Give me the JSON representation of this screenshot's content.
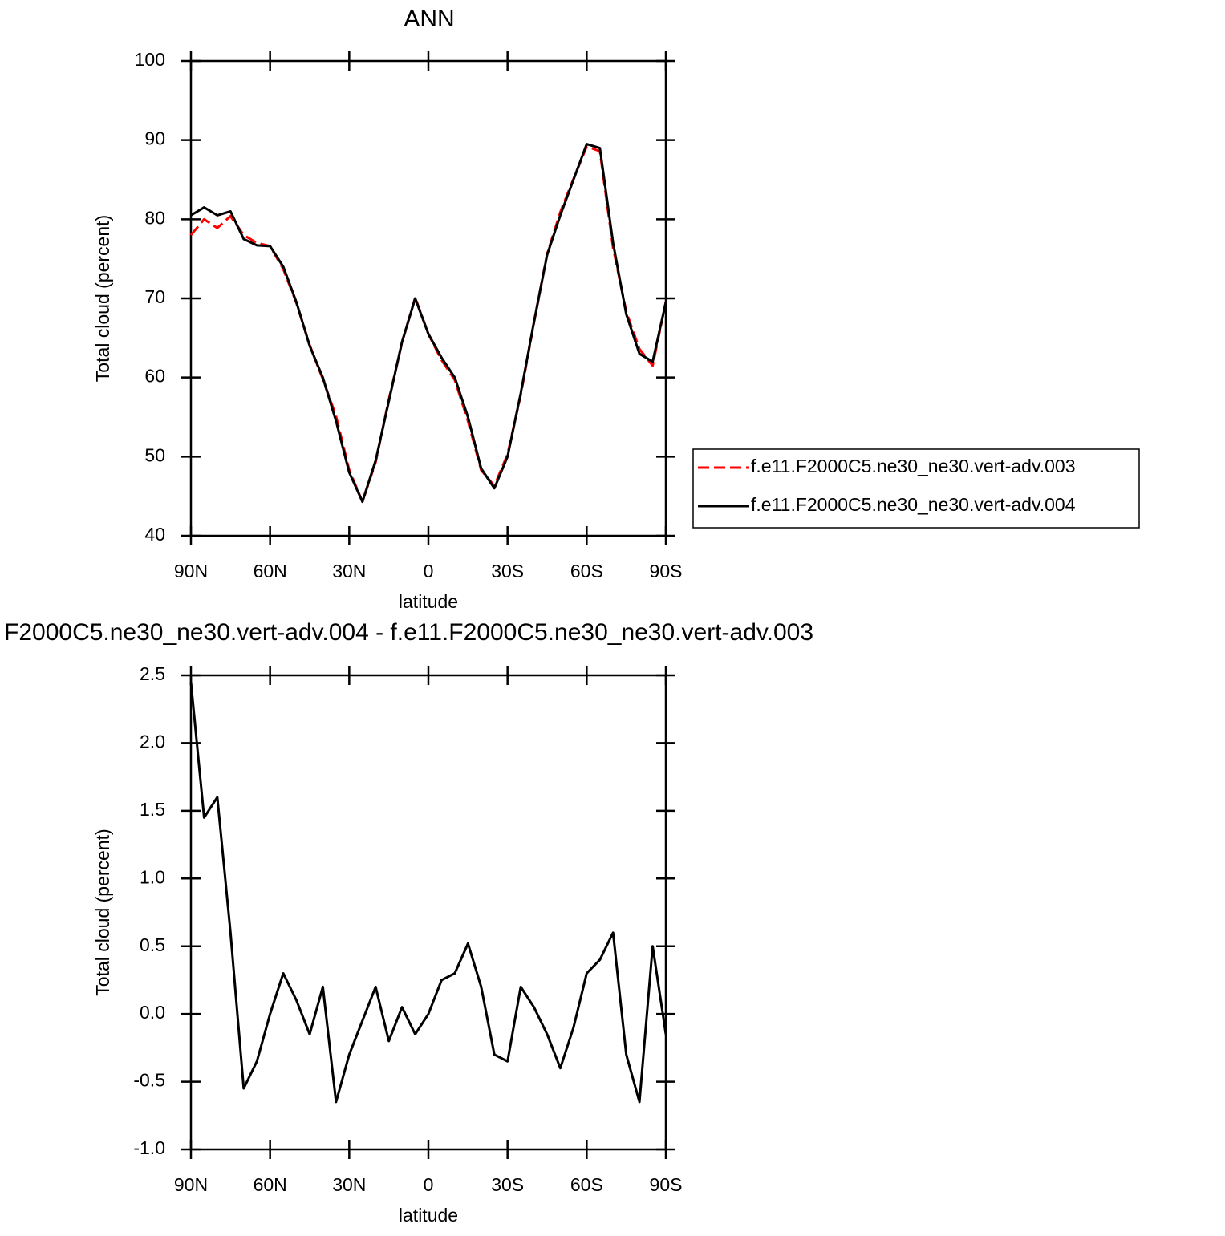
{
  "chart_data": [
    {
      "type": "line",
      "title": "ANN",
      "x_label": "latitude",
      "y_label": "Total cloud (percent)",
      "x": [
        90,
        85,
        80,
        75,
        70,
        65,
        60,
        55,
        50,
        45,
        40,
        35,
        30,
        25,
        20,
        15,
        10,
        5,
        0,
        -5,
        -10,
        -15,
        -20,
        -25,
        -30,
        -35,
        -40,
        -45,
        -50,
        -55,
        -60,
        -65,
        -70,
        -75,
        -80,
        -85,
        -90
      ],
      "xlim": [
        90,
        -90
      ],
      "xticks": [
        {
          "value": 90,
          "label": "90N"
        },
        {
          "value": 60,
          "label": "60N"
        },
        {
          "value": 30,
          "label": "30N"
        },
        0,
        {
          "value": -30,
          "label": "30S"
        },
        {
          "value": -60,
          "label": "60S"
        },
        {
          "value": -90,
          "label": "90S"
        }
      ],
      "ylim": [
        40,
        100
      ],
      "yticks": [
        40,
        50,
        60,
        70,
        80,
        90,
        100
      ],
      "legend": true,
      "series": [
        {
          "name": "f.e11.F2000C5.ne30_ne30.vert-adv.003",
          "color": "#ff0000",
          "line_style": "dashed",
          "values": [
            78.0,
            80.0,
            78.9,
            80.4,
            78.0,
            77.0,
            76.6,
            73.7,
            69.4,
            64.1,
            59.8,
            55.1,
            48.3,
            44.3,
            49.3,
            57.2,
            64.4,
            70.1,
            65.5,
            62.2,
            59.7,
            54.5,
            48.3,
            46.3,
            50.3,
            57.8,
            66.9,
            75.6,
            80.9,
            85.1,
            89.2,
            88.6,
            76.4,
            68.3,
            63.6,
            61.5,
            69.6
          ]
        },
        {
          "name": "f.e11.F2000C5.ne30_ne30.vert-adv.004",
          "color": "#000000",
          "line_style": "solid",
          "values": [
            80.5,
            81.5,
            80.5,
            81.0,
            77.5,
            76.7,
            76.6,
            74.0,
            69.5,
            64.0,
            60.0,
            54.5,
            48.0,
            44.3,
            49.5,
            57.0,
            64.5,
            70.0,
            65.5,
            62.5,
            60.0,
            55.0,
            48.5,
            46.0,
            50.0,
            58.0,
            67.0,
            75.5,
            80.5,
            85.0,
            89.5,
            89.0,
            77.0,
            68.0,
            63.0,
            62.0,
            69.5
          ]
        }
      ]
    },
    {
      "type": "line",
      "title": "F2000C5.ne30_ne30.vert-adv.004 - f.e11.F2000C5.ne30_ne30.vert-adv.003",
      "x_label": "latitude",
      "y_label": "Total cloud (percent)",
      "x": [
        90,
        85,
        80,
        75,
        70,
        65,
        60,
        55,
        50,
        45,
        40,
        35,
        30,
        25,
        20,
        15,
        10,
        5,
        0,
        -5,
        -10,
        -15,
        -20,
        -25,
        -30,
        -35,
        -40,
        -45,
        -50,
        -55,
        -60,
        -65,
        -70,
        -75,
        -80,
        -85,
        -90
      ],
      "xlim": [
        90,
        -90
      ],
      "xticks": [
        {
          "value": 90,
          "label": "90N"
        },
        {
          "value": 60,
          "label": "60N"
        },
        {
          "value": 30,
          "label": "30N"
        },
        0,
        {
          "value": -30,
          "label": "30S"
        },
        {
          "value": -60,
          "label": "60S"
        },
        {
          "value": -90,
          "label": "90S"
        }
      ],
      "ylim": [
        -1,
        2.5
      ],
      "yticks": [
        {
          "value": -1,
          "label": "-1.0"
        },
        -0.5,
        {
          "value": 0,
          "label": "0.0"
        },
        0.5,
        {
          "value": 1,
          "label": "1.0"
        },
        1.5,
        {
          "value": 2,
          "label": "2.0"
        },
        2.5
      ],
      "legend": false,
      "series": [
        {
          "name": null,
          "color": "#000000",
          "line_style": "solid",
          "values": [
            2.45,
            1.45,
            1.6,
            0.6,
            -0.55,
            -0.35,
            0.0,
            0.3,
            0.1,
            -0.15,
            0.2,
            -0.65,
            -0.3,
            -0.05,
            0.2,
            -0.2,
            0.05,
            -0.15,
            0.0,
            0.25,
            0.3,
            0.52,
            0.2,
            -0.3,
            -0.35,
            0.2,
            0.05,
            -0.15,
            -0.4,
            -0.1,
            0.3,
            0.4,
            0.6,
            -0.3,
            -0.65,
            0.5,
            -0.15
          ]
        }
      ]
    }
  ]
}
